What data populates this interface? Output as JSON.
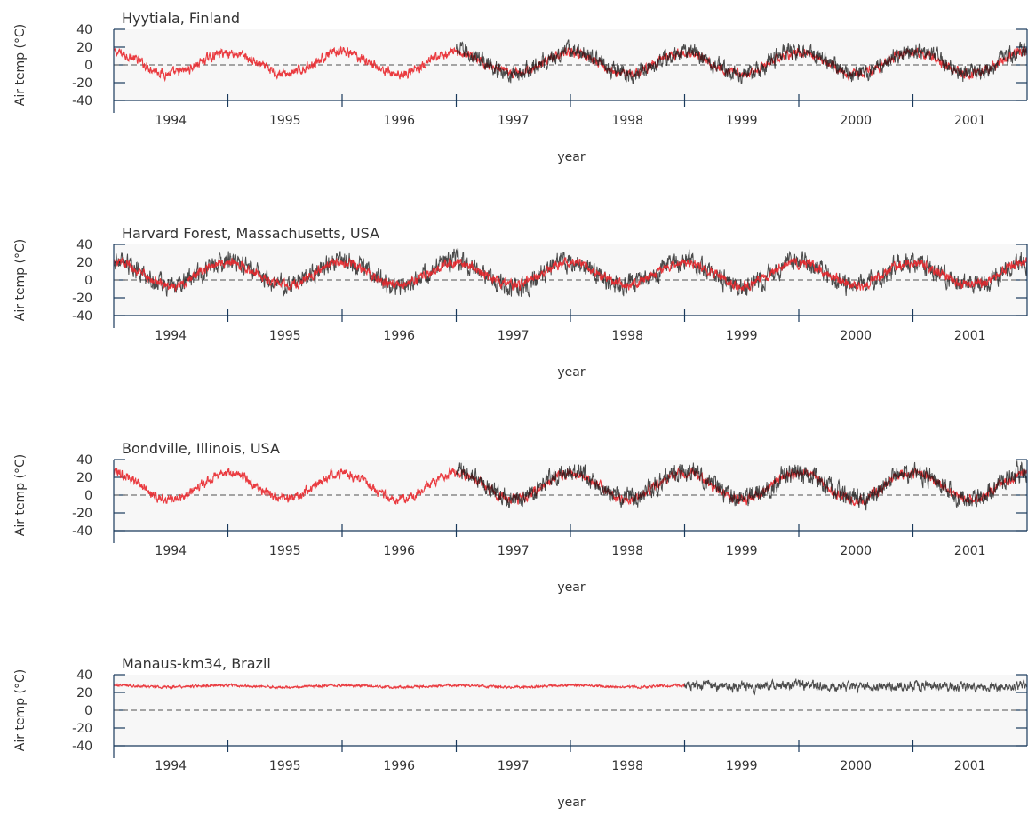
{
  "chart_data": [
    {
      "type": "line",
      "title": "Hyytiala, Finland",
      "xlabel": "year",
      "ylabel": "Air temp (°C)",
      "y_ticks": [
        "40",
        "20",
        "0",
        "-20",
        "-40"
      ],
      "year_labels": [
        "1994",
        "1995",
        "1996",
        "1997",
        "1998",
        "1999",
        "2000",
        "2001"
      ],
      "xlim": [
        1993.5,
        2001.5
      ],
      "ylim": [
        -40,
        40
      ],
      "series": [
        {
          "color": "#e8262b",
          "x_range": [
            1993.5,
            2001.5
          ],
          "mean": 2,
          "amplitude": 12,
          "noise": 4
        },
        {
          "color": "#111111",
          "x_range": [
            1996.5,
            2001.5
          ],
          "mean": 3,
          "amplitude": 13,
          "noise": 7
        }
      ]
    },
    {
      "type": "line",
      "title": "Harvard Forest, Massachusetts, USA",
      "xlabel": "year",
      "ylabel": "Air temp (°C)",
      "y_ticks": [
        "40",
        "20",
        "0",
        "-20",
        "-40"
      ],
      "year_labels": [
        "1994",
        "1995",
        "1996",
        "1997",
        "1998",
        "1999",
        "2000",
        "2001"
      ],
      "xlim": [
        1993.5,
        2001.5
      ],
      "ylim": [
        -40,
        40
      ],
      "series": [
        {
          "color": "#111111",
          "x_range": [
            1993.5,
            2001.5
          ],
          "mean": 7,
          "amplitude": 14,
          "noise": 8
        },
        {
          "color": "#e8262b",
          "x_range": [
            1993.5,
            2001.5
          ],
          "mean": 7,
          "amplitude": 13,
          "noise": 4
        }
      ]
    },
    {
      "type": "line",
      "title": "Bondville, Illinois, USA",
      "xlabel": "year",
      "ylabel": "Air temp (°C)",
      "y_ticks": [
        "40",
        "20",
        "0",
        "-20",
        "-40"
      ],
      "year_labels": [
        "1994",
        "1995",
        "1996",
        "1997",
        "1998",
        "1999",
        "2000",
        "2001"
      ],
      "xlim": [
        1993.5,
        2001.5
      ],
      "ylim": [
        -40,
        40
      ],
      "series": [
        {
          "color": "#e8262b",
          "x_range": [
            1993.5,
            2001.5
          ],
          "mean": 10,
          "amplitude": 15,
          "noise": 4
        },
        {
          "color": "#111111",
          "x_range": [
            1996.5,
            2001.5
          ],
          "mean": 11,
          "amplitude": 15,
          "noise": 8
        }
      ]
    },
    {
      "type": "line",
      "title": "Manaus-km34, Brazil",
      "xlabel": "year",
      "ylabel": "Air temp (°C)",
      "y_ticks": [
        "40",
        "20",
        "0",
        "-20",
        "-40"
      ],
      "year_labels": [
        "1994",
        "1995",
        "1996",
        "1997",
        "1998",
        "1999",
        "2000",
        "2001"
      ],
      "xlim": [
        1993.5,
        2001.5
      ],
      "ylim": [
        -40,
        40
      ],
      "series": [
        {
          "color": "#e8262b",
          "x_range": [
            1993.5,
            1998.5
          ],
          "mean": 27,
          "amplitude": 1,
          "noise": 1
        },
        {
          "color": "#111111",
          "x_range": [
            1998.5,
            2001.5
          ],
          "mean": 27,
          "amplitude": 1,
          "noise": 4
        }
      ]
    }
  ]
}
